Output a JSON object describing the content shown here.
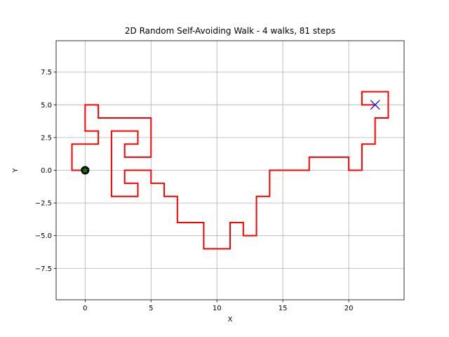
{
  "chart_data": {
    "type": "line",
    "title": "2D Random Self-Avoiding Walk - 4 walks, 81 steps",
    "xlabel": "X",
    "ylabel": "Y",
    "xlim": [
      -2.2,
      24.2
    ],
    "ylim": [
      -9.9,
      9.9
    ],
    "xticks": [
      0,
      5,
      10,
      15,
      20
    ],
    "xtick_labels": [
      "0",
      "5",
      "10",
      "15",
      "20"
    ],
    "yticks": [
      -7.5,
      -5.0,
      -2.5,
      0.0,
      2.5,
      5.0,
      7.5
    ],
    "ytick_labels": [
      "−7.5",
      "−5.0",
      "−2.5",
      "0.0",
      "2.5",
      "5.0",
      "7.5"
    ],
    "grid": true,
    "series": [
      {
        "color": "#ff0000",
        "points": [
          [
            22,
            5
          ],
          [
            21,
            5
          ],
          [
            21,
            6
          ],
          [
            23,
            6
          ],
          [
            23,
            4
          ],
          [
            22,
            4
          ],
          [
            22,
            2
          ],
          [
            21,
            2
          ],
          [
            21,
            0
          ],
          [
            20,
            0
          ],
          [
            20,
            1
          ],
          [
            17,
            1
          ],
          [
            17,
            0
          ],
          [
            14,
            0
          ],
          [
            14,
            -2
          ],
          [
            13,
            -2
          ],
          [
            13,
            -5
          ],
          [
            12,
            -5
          ],
          [
            12,
            -4
          ],
          [
            11,
            -4
          ],
          [
            11,
            -6
          ],
          [
            9,
            -6
          ],
          [
            9,
            -4
          ],
          [
            7,
            -4
          ],
          [
            7,
            -2
          ],
          [
            6,
            -2
          ],
          [
            6,
            -1
          ],
          [
            5,
            -1
          ],
          [
            5,
            0
          ],
          [
            3,
            0
          ],
          [
            3,
            -1
          ],
          [
            4,
            -1
          ],
          [
            4,
            -2
          ],
          [
            2,
            -2
          ],
          [
            2,
            3
          ],
          [
            4,
            3
          ],
          [
            4,
            2
          ],
          [
            3,
            2
          ],
          [
            3,
            1
          ],
          [
            5,
            1
          ],
          [
            5,
            4
          ],
          [
            1,
            4
          ],
          [
            1,
            5
          ],
          [
            0,
            5
          ],
          [
            0,
            3
          ],
          [
            1,
            3
          ],
          [
            1,
            2
          ],
          [
            -1,
            2
          ],
          [
            -1,
            0
          ],
          [
            0,
            0
          ]
        ]
      }
    ],
    "start_marker": {
      "x": 0,
      "y": 0,
      "fill": "#008000",
      "edge": "#000000"
    },
    "end_marker": {
      "x": 22,
      "y": 5,
      "color": "#0000ff"
    }
  }
}
